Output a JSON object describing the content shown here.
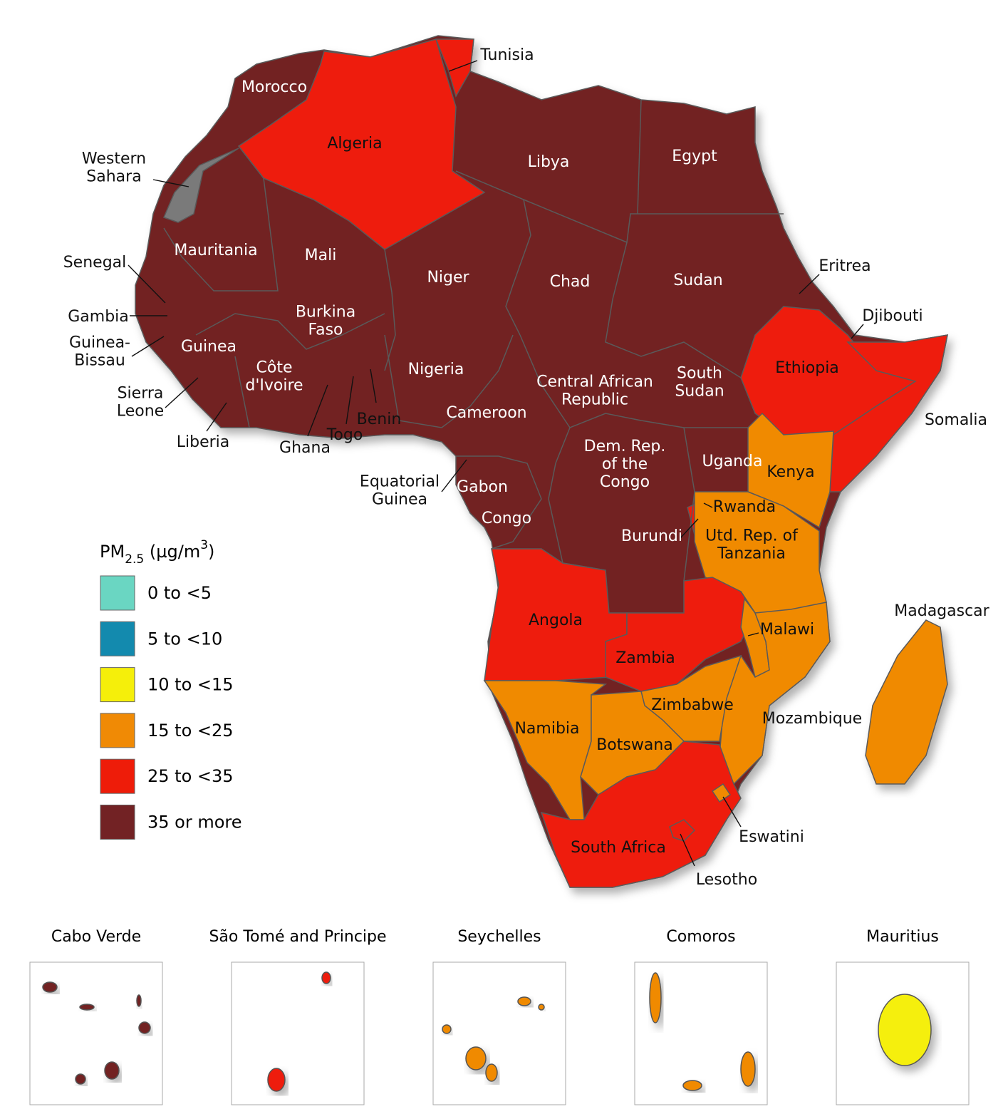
{
  "map": {
    "no_data_color": "#7a7a7a",
    "legend": {
      "title_parts": [
        "PM",
        "2.5",
        " (µg/m",
        "3",
        ")"
      ],
      "items": [
        {
          "label": "0 to <5",
          "color": "#6ad6c2"
        },
        {
          "label": "5 to <10",
          "color": "#138aae"
        },
        {
          "label": "10 to <15",
          "color": "#f5ef0a"
        },
        {
          "label": "15 to <25",
          "color": "#f08a05"
        },
        {
          "label": "25 to <35",
          "color": "#ee1c09"
        },
        {
          "label": "35 or more",
          "color": "#722224"
        }
      ]
    },
    "countries": [
      {
        "label": [
          "Morocco"
        ],
        "level": 5
      },
      {
        "label": [
          "Algeria"
        ],
        "level": 4
      },
      {
        "label": [
          "Tunisia"
        ],
        "level": 4
      },
      {
        "label": [
          "Libya"
        ],
        "level": 5
      },
      {
        "label": [
          "Egypt"
        ],
        "level": 5
      },
      {
        "label": [
          "Western",
          "Sahara"
        ],
        "level": null
      },
      {
        "label": [
          "Mauritania"
        ],
        "level": 5
      },
      {
        "label": [
          "Mali"
        ],
        "level": 5
      },
      {
        "label": [
          "Niger"
        ],
        "level": 5
      },
      {
        "label": [
          "Chad"
        ],
        "level": 5
      },
      {
        "label": [
          "Sudan"
        ],
        "level": 5
      },
      {
        "label": [
          "Eritrea"
        ],
        "level": 5
      },
      {
        "label": [
          "Djibouti"
        ],
        "level": 5
      },
      {
        "label": [
          "Senegal"
        ],
        "level": 5
      },
      {
        "label": [
          "Gambia"
        ],
        "level": 5
      },
      {
        "label": [
          "Guinea-",
          "Bissau"
        ],
        "level": 5
      },
      {
        "label": [
          "Guinea"
        ],
        "level": 5
      },
      {
        "label": [
          "Sierra",
          "Leone"
        ],
        "level": 5
      },
      {
        "label": [
          "Liberia"
        ],
        "level": 5
      },
      {
        "label": [
          "Burkina",
          "Faso"
        ],
        "level": 5
      },
      {
        "label": [
          "Côte",
          "d'Ivoire"
        ],
        "level": 5
      },
      {
        "label": [
          "Ghana"
        ],
        "level": 5
      },
      {
        "label": [
          "Togo"
        ],
        "level": 5
      },
      {
        "label": [
          "Benin"
        ],
        "level": 5
      },
      {
        "label": [
          "Nigeria"
        ],
        "level": 5
      },
      {
        "label": [
          "Cameroon"
        ],
        "level": 5
      },
      {
        "label": [
          "Central African",
          "Republic"
        ],
        "level": 5
      },
      {
        "label": [
          "South",
          "Sudan"
        ],
        "level": 5
      },
      {
        "label": [
          "Ethiopia"
        ],
        "level": 4
      },
      {
        "label": [
          "Somalia"
        ],
        "level": 4
      },
      {
        "label": [
          "Equatorial",
          "Guinea"
        ],
        "level": 5
      },
      {
        "label": [
          "Gabon"
        ],
        "level": 5
      },
      {
        "label": [
          "Congo"
        ],
        "level": 5
      },
      {
        "label": [
          "Dem. Rep.",
          "of the",
          "Congo"
        ],
        "level": 5
      },
      {
        "label": [
          "Uganda"
        ],
        "level": 5
      },
      {
        "label": [
          "Kenya"
        ],
        "level": 3
      },
      {
        "label": [
          "Rwanda"
        ],
        "level": 5
      },
      {
        "label": [
          "Burundi"
        ],
        "level": 4
      },
      {
        "label": [
          "Utd. Rep. of",
          "Tanzania"
        ],
        "level": 3
      },
      {
        "label": [
          "Angola"
        ],
        "level": 4
      },
      {
        "label": [
          "Zambia"
        ],
        "level": 4
      },
      {
        "label": [
          "Malawi"
        ],
        "level": 3
      },
      {
        "label": [
          "Mozambique"
        ],
        "level": 3
      },
      {
        "label": [
          "Zimbabwe"
        ],
        "level": 3
      },
      {
        "label": [
          "Namibia"
        ],
        "level": 3
      },
      {
        "label": [
          "Botswana"
        ],
        "level": 3
      },
      {
        "label": [
          "South Africa"
        ],
        "level": 4
      },
      {
        "label": [
          "Lesotho"
        ],
        "level": 4
      },
      {
        "label": [
          "Eswatini"
        ],
        "level": 3
      },
      {
        "label": [
          "Madagascar"
        ],
        "level": 3
      }
    ],
    "insets": [
      {
        "title": "Cabo Verde",
        "level": 5
      },
      {
        "title": "São Tomé and Principe",
        "level": 4
      },
      {
        "title": "Seychelles",
        "level": 3
      },
      {
        "title": "Comoros",
        "level": 3
      },
      {
        "title": "Mauritius",
        "level": 2
      }
    ]
  }
}
